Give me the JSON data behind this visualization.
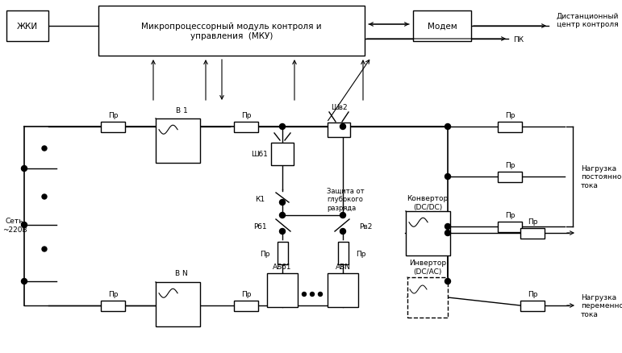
{
  "bg_color": "#ffffff",
  "line_color": "#000000",
  "fs": 7.5,
  "fs_s": 6.5,
  "mku_label": "Микропроцессорный модуль контроля и\nуправления  (МКУ)",
  "zhki_label": "ЖКИ",
  "modem_label": "Модем",
  "dist_label": "Дистанционный\nцентр контроля",
  "pk_label": "ПК",
  "set_label": "Сеть\n~220В",
  "v1_label": "В 1",
  "vn_label": "В N",
  "sh1_label": "Шб1",
  "sh2_label": "Шв2",
  "k1_label": "К1",
  "r1_label": "Рб1",
  "r2_label": "Рв2",
  "ab1_label": "АБб1",
  "abn_label": "АБN",
  "pr_label": "Пр",
  "konvertor_label": "Конвертор\n(DC/DC)",
  "invertor_label": "Инвертор\n(DC/AC)",
  "zashita_label": "Защита от\nглубокого\nразряда",
  "nagruzka_dc_label": "Нагрузка\nпостоянного\nтока",
  "nagruzka_ac_label": "Нагрузка\nпеременного\nтока"
}
